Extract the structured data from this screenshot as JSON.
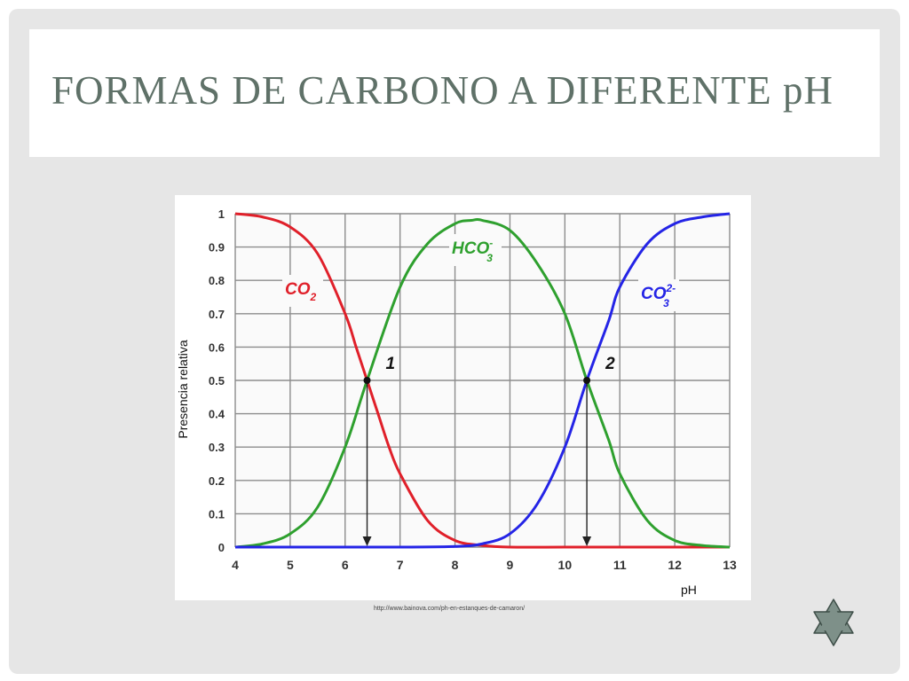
{
  "slide": {
    "title": "FORMAS DE CARBONO A DIFERENTE pH",
    "source": "http://www.bainova.com/ph-en-estanques-de-camaron/",
    "nav_icon": "star-of-david-icon",
    "colors": {
      "title": "#5f7168",
      "background": "#e6e6e6",
      "star": "#7e9089"
    }
  },
  "chart_data": {
    "type": "line",
    "title": "",
    "xlabel": "pH",
    "ylabel": "Presencia relativa",
    "xlim": [
      4,
      13
    ],
    "ylim": [
      0,
      1
    ],
    "x_ticks": [
      "4",
      "5",
      "6",
      "7",
      "8",
      "9",
      "10",
      "11",
      "12",
      "13"
    ],
    "y_ticks": [
      "0",
      "0.1",
      "0.2",
      "0.3",
      "0.4",
      "0.5",
      "0.6",
      "0.7",
      "0.8",
      "0.9",
      "1"
    ],
    "grid": true,
    "series": [
      {
        "name": "CO2",
        "color": "#e0202a",
        "x": [
          4,
          4.5,
          5,
          5.5,
          6,
          6.2,
          6.4,
          6.6,
          6.8,
          7,
          7.5,
          8,
          8.5,
          9,
          10,
          11,
          12,
          13
        ],
        "values": [
          1.0,
          0.99,
          0.96,
          0.88,
          0.7,
          0.6,
          0.5,
          0.4,
          0.3,
          0.22,
          0.08,
          0.02,
          0.005,
          0,
          0,
          0,
          0,
          0
        ]
      },
      {
        "name": "HCO3-",
        "color": "#2ea02e",
        "x": [
          4,
          4.5,
          5,
          5.5,
          6,
          6.4,
          7,
          7.5,
          8,
          8.3,
          8.5,
          9,
          9.5,
          10,
          10.4,
          10.8,
          11,
          11.5,
          12,
          12.5,
          13
        ],
        "values": [
          0.0,
          0.01,
          0.04,
          0.12,
          0.3,
          0.5,
          0.78,
          0.91,
          0.97,
          0.98,
          0.98,
          0.95,
          0.85,
          0.7,
          0.5,
          0.32,
          0.22,
          0.08,
          0.02,
          0.005,
          0.0
        ]
      },
      {
        "name": "CO3 2-",
        "color": "#2424e6",
        "x": [
          4,
          5,
          6,
          7,
          8,
          8.5,
          9,
          9.5,
          10,
          10.4,
          10.8,
          11,
          11.5,
          12,
          12.5,
          13
        ],
        "values": [
          0,
          0,
          0,
          0,
          0.002,
          0.01,
          0.04,
          0.13,
          0.3,
          0.5,
          0.68,
          0.78,
          0.91,
          0.97,
          0.99,
          1.0
        ]
      }
    ],
    "series_labels": [
      {
        "main": "CO",
        "sub": "2",
        "sup": "",
        "color": "#e0202a"
      },
      {
        "main": "HCO",
        "sub": "3",
        "sup": "-",
        "color": "#2ea02e"
      },
      {
        "main": "CO",
        "sub": "3",
        "sup": "2-",
        "color": "#2424e6"
      }
    ],
    "annotations": [
      {
        "label": "1",
        "x": 6.4,
        "y": 0.5
      },
      {
        "label": "2",
        "x": 10.4,
        "y": 0.5
      }
    ]
  }
}
